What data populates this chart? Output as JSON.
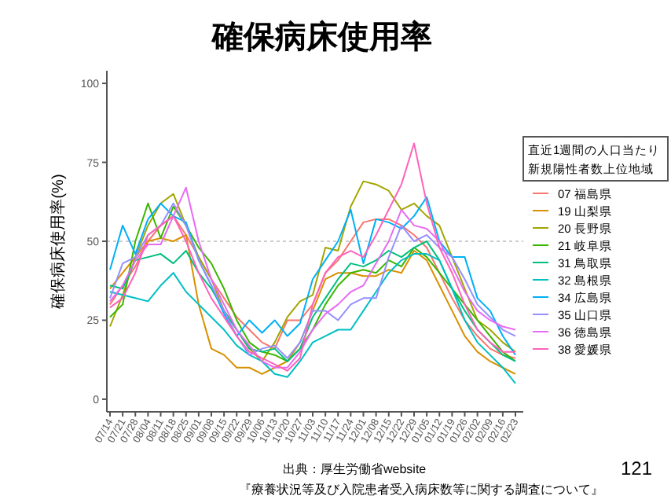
{
  "chart_data": {
    "type": "line",
    "title": "確保病床使用率",
    "ylabel": "確保病床使用率(%)",
    "legend_title": "直近1週間の人口当たり新規陽性者数上位地域",
    "categories": [
      "07/14",
      "07/21",
      "07/28",
      "08/04",
      "08/11",
      "08/18",
      "08/25",
      "09/01",
      "09/08",
      "09/15",
      "09/22",
      "09/29",
      "10/06",
      "10/13",
      "10/20",
      "10/27",
      "11/03",
      "11/10",
      "11/17",
      "11/24",
      "12/01",
      "12/08",
      "12/15",
      "12/22",
      "12/29",
      "01/05",
      "01/12",
      "01/19",
      "01/26",
      "02/02",
      "02/09",
      "02/16",
      "02/23"
    ],
    "series": [
      {
        "name": "07 福島県",
        "color": "#f8766d",
        "values": [
          30,
          36,
          42,
          50,
          55,
          58,
          52,
          45,
          38,
          32,
          26,
          22,
          18,
          16,
          25,
          25,
          30,
          40,
          44,
          50,
          56,
          57,
          57,
          55,
          52,
          48,
          40,
          32,
          25,
          20,
          16,
          14,
          13
        ]
      },
      {
        "name": "19 山梨県",
        "color": "#d89000",
        "values": [
          35,
          40,
          45,
          50,
          51,
          50,
          52,
          30,
          16,
          14,
          10,
          10,
          8,
          10,
          12,
          18,
          28,
          38,
          40,
          40,
          39,
          39,
          41,
          40,
          47,
          44,
          36,
          28,
          20,
          15,
          12,
          10,
          8
        ]
      },
      {
        "name": "20 長野県",
        "color": "#a3a500",
        "values": [
          23,
          33,
          45,
          55,
          62,
          65,
          55,
          45,
          38,
          28,
          22,
          16,
          12,
          18,
          26,
          31,
          33,
          48,
          47,
          61,
          69,
          68,
          66,
          60,
          62,
          58,
          55,
          45,
          35,
          25,
          22,
          18,
          15
        ]
      },
      {
        "name": "21 岐阜県",
        "color": "#39b600",
        "values": [
          26,
          30,
          50,
          62,
          51,
          61,
          55,
          48,
          43,
          35,
          25,
          18,
          15,
          14,
          12,
          16,
          22,
          30,
          36,
          40,
          41,
          40,
          44,
          42,
          48,
          45,
          40,
          35,
          30,
          25,
          20,
          15,
          12
        ]
      },
      {
        "name": "31 鳥取県",
        "color": "#00bf7d",
        "values": [
          36,
          35,
          44,
          45,
          46,
          43,
          47,
          40,
          35,
          28,
          22,
          16,
          15,
          16,
          12,
          16,
          26,
          32,
          38,
          43,
          42,
          44,
          47,
          45,
          48,
          50,
          44,
          35,
          28,
          22,
          18,
          14,
          12
        ]
      },
      {
        "name": "32 島根県",
        "color": "#00bfc4",
        "values": [
          34,
          33,
          32,
          31,
          36,
          40,
          34,
          30,
          26,
          22,
          17,
          14,
          12,
          8,
          7,
          12,
          18,
          20,
          22,
          22,
          28,
          34,
          40,
          44,
          46,
          46,
          44,
          35,
          25,
          18,
          14,
          10,
          5
        ]
      },
      {
        "name": "34 広島県",
        "color": "#00b0f6",
        "values": [
          41,
          55,
          46,
          57,
          62,
          58,
          56,
          44,
          36,
          27,
          20,
          25,
          21,
          25,
          20,
          24,
          38,
          44,
          50,
          60,
          43,
          57,
          56,
          54,
          58,
          64,
          50,
          45,
          45,
          32,
          28,
          20,
          14
        ]
      },
      {
        "name": "35 山口県",
        "color": "#9590ff",
        "values": [
          32,
          43,
          45,
          52,
          55,
          62,
          55,
          44,
          36,
          28,
          20,
          14,
          16,
          17,
          13,
          18,
          28,
          28,
          25,
          30,
          32,
          32,
          45,
          55,
          50,
          52,
          48,
          45,
          38,
          30,
          26,
          22,
          20
        ]
      },
      {
        "name": "36 徳島県",
        "color": "#e76bf3",
        "values": [
          31,
          36,
          44,
          49,
          49,
          58,
          67,
          50,
          38,
          30,
          22,
          17,
          12,
          10,
          10,
          15,
          22,
          27,
          30,
          34,
          36,
          43,
          50,
          60,
          55,
          54,
          50,
          42,
          34,
          28,
          25,
          23,
          22
        ]
      },
      {
        "name": "38 愛媛県",
        "color": "#ff62bc",
        "values": [
          29,
          32,
          40,
          52,
          55,
          58,
          50,
          40,
          32,
          26,
          20,
          15,
          13,
          11,
          9,
          13,
          30,
          40,
          45,
          47,
          45,
          52,
          60,
          68,
          81,
          62,
          48,
          40,
          30,
          22,
          18,
          15,
          15
        ]
      }
    ],
    "ylim": [
      -4,
      104
    ],
    "yticks": [
      0,
      25,
      50,
      75,
      100
    ],
    "ref_lines": [
      {
        "axis": "y",
        "value": 50,
        "color": "#cccccc",
        "line_style": "dotted"
      }
    ],
    "grid": false,
    "legend": "right",
    "marker": "none",
    "line_style": "solid",
    "annotations": [
      "出典：厚生労働省website",
      "『療養状況等及び入院患者受入病床数等に関する調査について』",
      "121"
    ]
  }
}
